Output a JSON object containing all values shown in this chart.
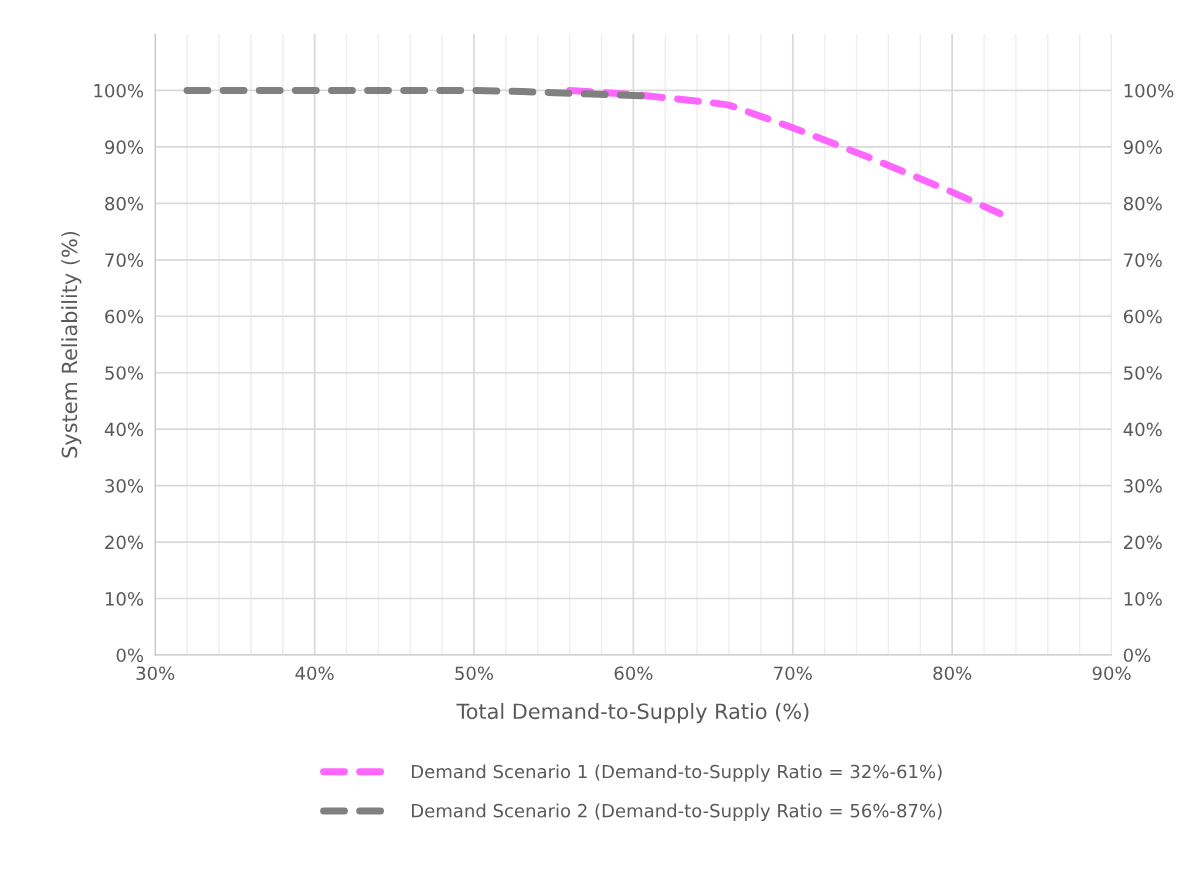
{
  "chart_data": {
    "type": "line",
    "xlabel": "Total Demand-to-Supply Ratio (%)",
    "ylabel": "System Reliability (%)",
    "xlim": [
      30,
      90
    ],
    "xticks": [
      {
        "value": 30,
        "label": "30%"
      },
      {
        "value": 40,
        "label": "40%"
      },
      {
        "value": 50,
        "label": "50%"
      },
      {
        "value": 60,
        "label": "60%"
      },
      {
        "value": 70,
        "label": "70%"
      },
      {
        "value": 80,
        "label": "80%"
      },
      {
        "value": 90,
        "label": "90%"
      }
    ],
    "ylim": [
      0,
      110
    ],
    "yticks": [
      {
        "value": 0,
        "label": "0%"
      },
      {
        "value": 10,
        "label": "10%"
      },
      {
        "value": 20,
        "label": "20%"
      },
      {
        "value": 30,
        "label": "30%"
      },
      {
        "value": 40,
        "label": "40%"
      },
      {
        "value": 50,
        "label": "50%"
      },
      {
        "value": 60,
        "label": "60%"
      },
      {
        "value": 70,
        "label": "70%"
      },
      {
        "value": 80,
        "label": "80%"
      },
      {
        "value": 90,
        "label": "90%"
      },
      {
        "value": 100,
        "label": "100%"
      }
    ],
    "y2lim": [
      0,
      110
    ],
    "y2ticks": [
      {
        "value": 0,
        "label": "0%"
      },
      {
        "value": 10,
        "label": "10%"
      },
      {
        "value": 20,
        "label": "20%"
      },
      {
        "value": 30,
        "label": "30%"
      },
      {
        "value": 40,
        "label": "40%"
      },
      {
        "value": 50,
        "label": "50%"
      },
      {
        "value": 60,
        "label": "60%"
      },
      {
        "value": 70,
        "label": "70%"
      },
      {
        "value": 80,
        "label": "80%"
      },
      {
        "value": 90,
        "label": "90%"
      },
      {
        "value": 100,
        "label": "100%"
      }
    ],
    "grid": true,
    "legend": "bottom",
    "line_style": "dashed",
    "marker": "none",
    "series": [
      {
        "name": "Demand Scenario 1 (Demand-to-Supply Ratio = 32%-61%)",
        "color": "#ff66ff",
        "x": [
          56,
          60,
          65,
          66,
          70,
          75,
          80,
          83
        ],
        "values": [
          100,
          99.3,
          97.8,
          97.4,
          93.4,
          87.9,
          82,
          78.2
        ]
      },
      {
        "name": "Demand Scenario 2 (Demand-to-Supply Ratio = 56%-87%)",
        "color": "#808080",
        "x": [
          32,
          50,
          53,
          56,
          61
        ],
        "values": [
          100,
          100,
          99.8,
          99.5,
          99
        ]
      }
    ]
  }
}
